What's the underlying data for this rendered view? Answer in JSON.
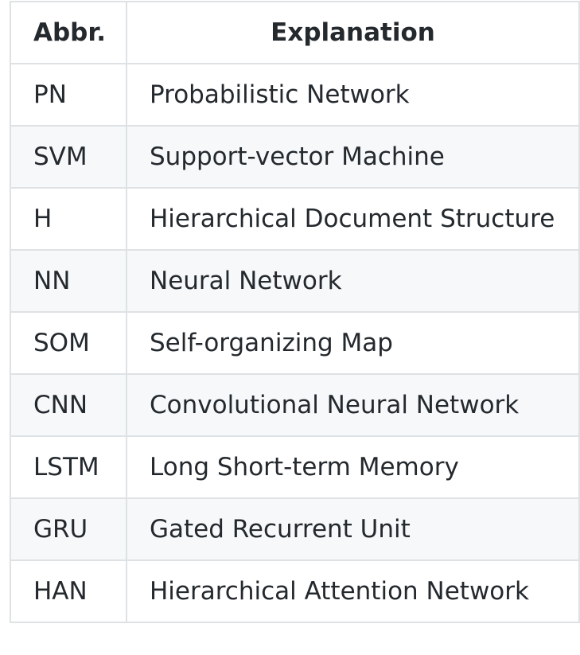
{
  "table": {
    "headers": {
      "abbr": "Abbr.",
      "explanation": "Explanation"
    },
    "rows": [
      {
        "abbr": "PN",
        "explanation": "Probabilistic Network"
      },
      {
        "abbr": "SVM",
        "explanation": "Support-vector Machine"
      },
      {
        "abbr": "H",
        "explanation": "Hierarchical Document Structure"
      },
      {
        "abbr": "NN",
        "explanation": "Neural Network"
      },
      {
        "abbr": "SOM",
        "explanation": "Self-organizing Map"
      },
      {
        "abbr": "CNN",
        "explanation": "Convolutional Neural Network"
      },
      {
        "abbr": "LSTM",
        "explanation": "Long Short-term Memory"
      },
      {
        "abbr": "GRU",
        "explanation": "Gated Recurrent Unit"
      },
      {
        "abbr": "HAN",
        "explanation": "Hierarchical Attention Network"
      }
    ]
  },
  "colors": {
    "border": "#dfe2e5",
    "stripe": "#f6f8fa",
    "text": "#24292e"
  }
}
